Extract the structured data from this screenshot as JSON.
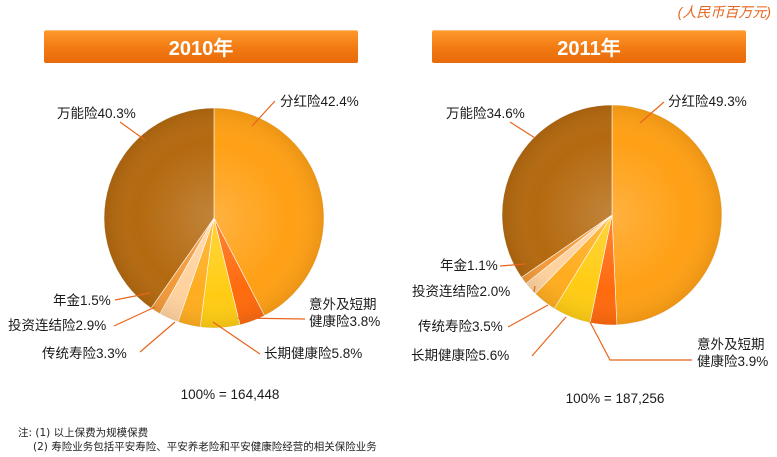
{
  "unit_note": "(人民币百万元)",
  "chart_data": [
    {
      "type": "pie",
      "title": "2010年",
      "total_label": "100% = 164,448",
      "slices": [
        {
          "label": "分红险",
          "value": 42.4,
          "display": "分红险42.4%",
          "color": "#ffa015"
        },
        {
          "label": "意外及短期健康险",
          "value": 3.8,
          "display": [
            "意外及短期",
            "健康险3.8%"
          ],
          "color": "#ff6a0d"
        },
        {
          "label": "长期健康险",
          "value": 5.8,
          "display": "长期健康险5.8%",
          "color": "#ffcc14"
        },
        {
          "label": "传统寿险",
          "value": 3.3,
          "display": "传统寿险3.3%",
          "color": "#ffad1f"
        },
        {
          "label": "投资连结险",
          "value": 2.9,
          "display": "投资连结险2.9%",
          "color": "#ffd29e"
        },
        {
          "label": "年金",
          "value": 1.5,
          "display": "年金1.5%",
          "color": "#f29a3a"
        },
        {
          "label": "万能险",
          "value": 40.3,
          "display": "万能险40.3%",
          "color": "#b4690f"
        }
      ]
    },
    {
      "type": "pie",
      "title": "2011年",
      "total_label": "100% = 187,256",
      "slices": [
        {
          "label": "分红险",
          "value": 49.3,
          "display": "分红险49.3%",
          "color": "#ffa015"
        },
        {
          "label": "意外及短期健康险",
          "value": 3.9,
          "display": [
            "意外及短期",
            "健康险3.9%"
          ],
          "color": "#ff6a0d"
        },
        {
          "label": "长期健康险",
          "value": 5.6,
          "display": "长期健康险5.6%",
          "color": "#ffcc14"
        },
        {
          "label": "传统寿险",
          "value": 3.5,
          "display": "传统寿险3.5%",
          "color": "#ffad1f"
        },
        {
          "label": "投资连结险",
          "value": 2.0,
          "display": "投资连结险2.0%",
          "color": "#ffd29e"
        },
        {
          "label": "年金",
          "value": 1.1,
          "display": "年金1.1%",
          "color": "#f29a3a"
        },
        {
          "label": "万能险",
          "value": 34.6,
          "display": "万能险34.6%",
          "color": "#b4690f"
        }
      ]
    }
  ],
  "notes": [
    "注: (1) 以上保费为规模保费",
    "(2) 寿险业务包括平安寿险、平安养老险和平安健康险经营的相关保险业务"
  ]
}
